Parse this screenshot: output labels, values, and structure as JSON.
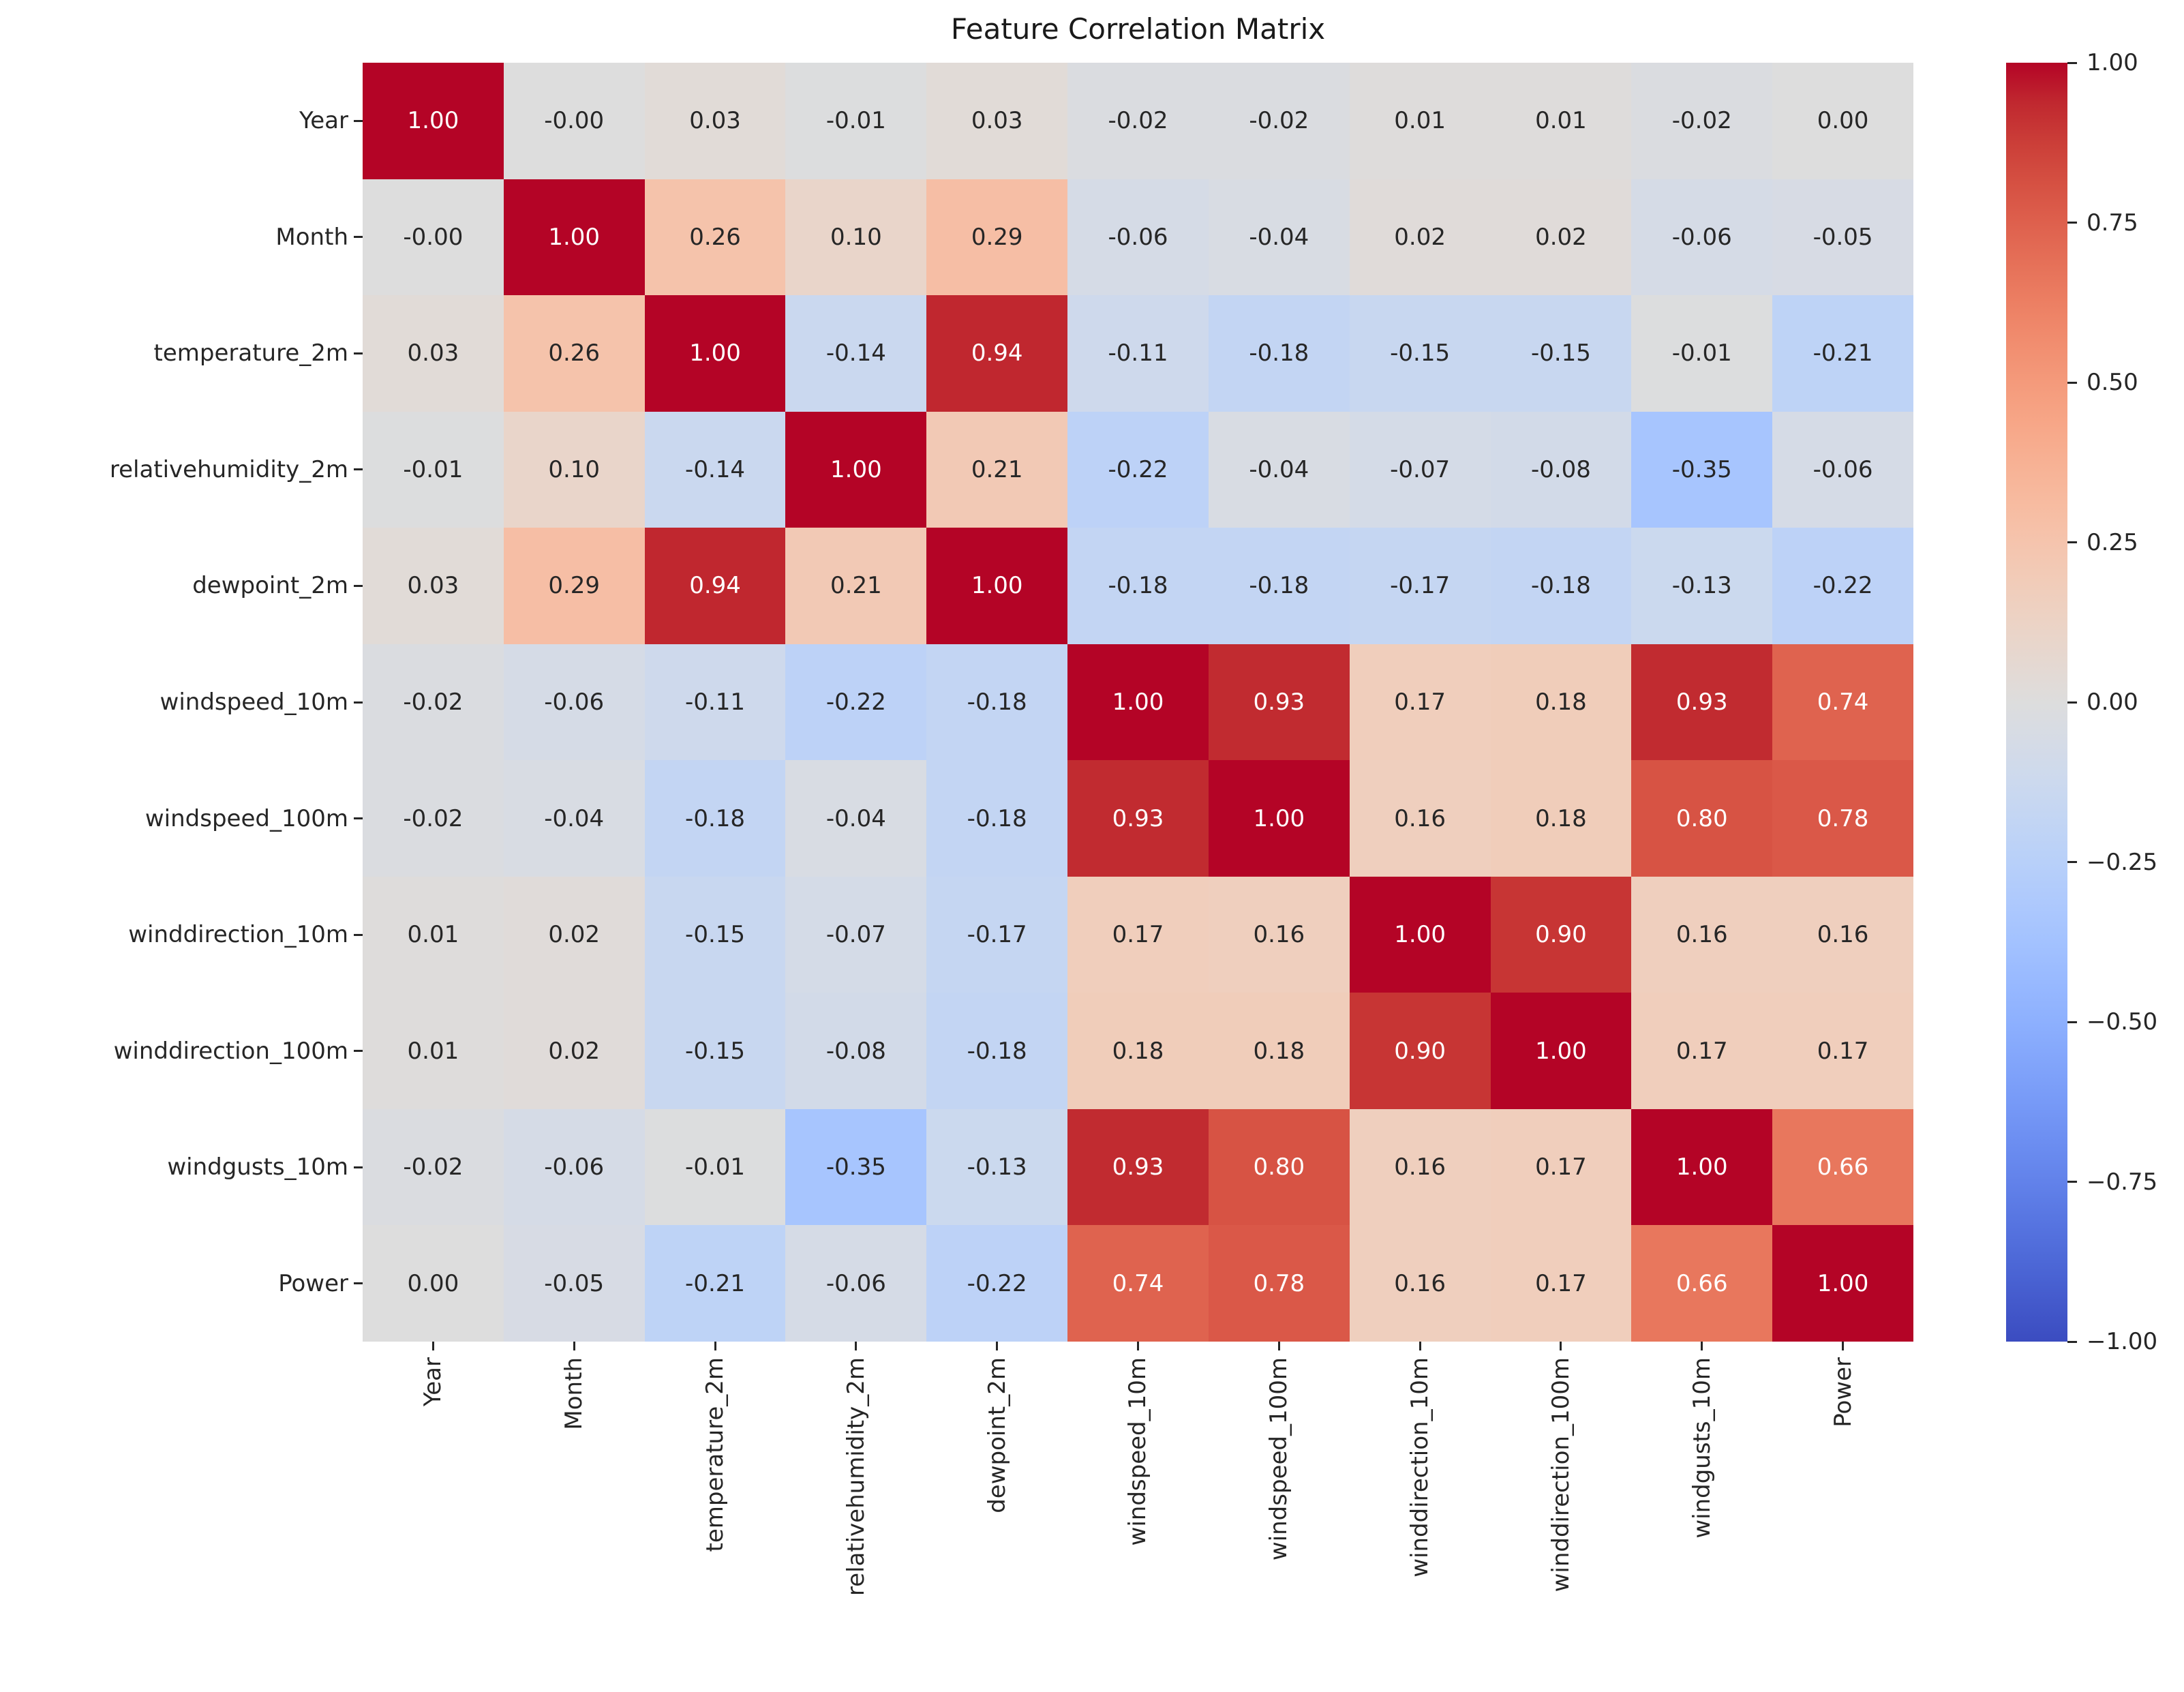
{
  "title": "Feature Correlation Matrix",
  "colors": {
    "background": "#ffffff",
    "annot_dark": "#262626",
    "annot_light": "#ffffff",
    "tick_color": "#262626",
    "colormap_name": "coolwarm",
    "coolwarm_lut": [
      "#3b4cc0",
      "#445acc",
      "#4d68d7",
      "#5775e1",
      "#6282ea",
      "#6c8ef1",
      "#779af7",
      "#82a5fb",
      "#8db0fe",
      "#98b9ff",
      "#a3c2ff",
      "#aec9fd",
      "#b8d0f9",
      "#c2d5f4",
      "#ccd9ee",
      "#d5dbe6",
      "#dddddd",
      "#e5d8d1",
      "#ecd3c5",
      "#f1ccb9",
      "#f5c4ad",
      "#f7bba0",
      "#f7b194",
      "#f7a687",
      "#f49a7b",
      "#f18d6f",
      "#ec7f63",
      "#e57058",
      "#de604d",
      "#d55042",
      "#cb3e38",
      "#c0282f",
      "#b40426"
    ]
  },
  "chart_data": {
    "type": "heatmap",
    "title": "Feature Correlation Matrix",
    "labels": [
      "Year",
      "Month",
      "temperature_2m",
      "relativehumidity_2m",
      "dewpoint_2m",
      "windspeed_10m",
      "windspeed_100m",
      "winddirection_10m",
      "winddirection_100m",
      "windgusts_10m",
      "Power"
    ],
    "matrix": [
      [
        "1.00",
        "-0.00",
        "0.03",
        "-0.01",
        "0.03",
        "-0.02",
        "-0.02",
        "0.01",
        "0.01",
        "-0.02",
        "0.00"
      ],
      [
        "-0.00",
        "1.00",
        "0.26",
        "0.10",
        "0.29",
        "-0.06",
        "-0.04",
        "0.02",
        "0.02",
        "-0.06",
        "-0.05"
      ],
      [
        "0.03",
        "0.26",
        "1.00",
        "-0.14",
        "0.94",
        "-0.11",
        "-0.18",
        "-0.15",
        "-0.15",
        "-0.01",
        "-0.21"
      ],
      [
        "-0.01",
        "0.10",
        "-0.14",
        "1.00",
        "0.21",
        "-0.22",
        "-0.04",
        "-0.07",
        "-0.08",
        "-0.35",
        "-0.06"
      ],
      [
        "0.03",
        "0.29",
        "0.94",
        "0.21",
        "1.00",
        "-0.18",
        "-0.18",
        "-0.17",
        "-0.18",
        "-0.13",
        "-0.22"
      ],
      [
        "-0.02",
        "-0.06",
        "-0.11",
        "-0.22",
        "-0.18",
        "1.00",
        "0.93",
        "0.17",
        "0.18",
        "0.93",
        "0.74"
      ],
      [
        "-0.02",
        "-0.04",
        "-0.18",
        "-0.04",
        "-0.18",
        "0.93",
        "1.00",
        "0.16",
        "0.18",
        "0.80",
        "0.78"
      ],
      [
        "0.01",
        "0.02",
        "-0.15",
        "-0.07",
        "-0.17",
        "0.17",
        "0.16",
        "1.00",
        "0.90",
        "0.16",
        "0.16"
      ],
      [
        "0.01",
        "0.02",
        "-0.15",
        "-0.08",
        "-0.18",
        "0.18",
        "0.18",
        "0.90",
        "1.00",
        "0.17",
        "0.17"
      ],
      [
        "-0.02",
        "-0.06",
        "-0.01",
        "-0.35",
        "-0.13",
        "0.93",
        "0.80",
        "0.16",
        "0.17",
        "1.00",
        "0.66"
      ],
      [
        "0.00",
        "-0.05",
        "-0.21",
        "-0.06",
        "-0.22",
        "0.74",
        "0.78",
        "0.16",
        "0.17",
        "0.66",
        "1.00"
      ]
    ],
    "vmin": -1,
    "vmax": 1,
    "grid": false,
    "legend_position": "right",
    "colorbar_ticks": [
      "1.00",
      "0.75",
      "0.50",
      "0.25",
      "0.00",
      "−0.25",
      "−0.50",
      "−0.75",
      "−1.00"
    ]
  }
}
